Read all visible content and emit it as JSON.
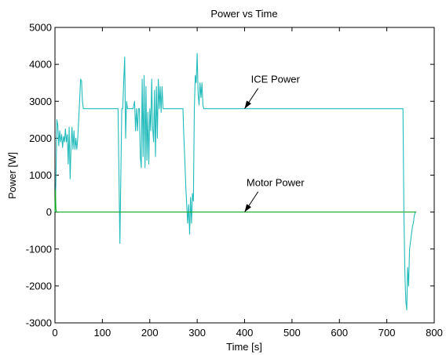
{
  "chart_data": {
    "type": "line",
    "title": "Power vs Time",
    "xlabel": "Time [s]",
    "ylabel": "Power [W]",
    "xlim": [
      0,
      800
    ],
    "ylim": [
      -3000,
      5000
    ],
    "xticks": [
      0,
      100,
      200,
      300,
      400,
      500,
      600,
      700,
      800
    ],
    "yticks": [
      -3000,
      -2000,
      -1000,
      0,
      1000,
      2000,
      3000,
      4000,
      5000
    ],
    "grid": false,
    "series": [
      {
        "name": "ICE Power",
        "color": "#22bbbb",
        "points": [
          [
            0,
            0
          ],
          [
            2,
            800
          ],
          [
            4,
            2500
          ],
          [
            6,
            2350
          ],
          [
            8,
            1800
          ],
          [
            10,
            2200
          ],
          [
            12,
            1900
          ],
          [
            14,
            2100
          ],
          [
            16,
            1750
          ],
          [
            18,
            2050
          ],
          [
            20,
            1900
          ],
          [
            22,
            2250
          ],
          [
            24,
            1900
          ],
          [
            26,
            2100
          ],
          [
            28,
            1300
          ],
          [
            30,
            2300
          ],
          [
            32,
            900
          ],
          [
            34,
            1800
          ],
          [
            36,
            2300
          ],
          [
            38,
            1700
          ],
          [
            40,
            2200
          ],
          [
            42,
            1700
          ],
          [
            44,
            2000
          ],
          [
            46,
            1700
          ],
          [
            48,
            2000
          ],
          [
            50,
            2500
          ],
          [
            52,
            3000
          ],
          [
            54,
            3600
          ],
          [
            56,
            3550
          ],
          [
            58,
            3000
          ],
          [
            60,
            2800
          ],
          [
            133,
            2800
          ],
          [
            135,
            1000
          ],
          [
            137,
            -850
          ],
          [
            139,
            1000
          ],
          [
            141,
            2800
          ],
          [
            143,
            2800
          ],
          [
            145,
            3500
          ],
          [
            147,
            4200
          ],
          [
            149,
            2000
          ],
          [
            151,
            3000
          ],
          [
            153,
            2800
          ],
          [
            165,
            2800
          ],
          [
            168,
            3000
          ],
          [
            170,
            2200
          ],
          [
            172,
            2800
          ],
          [
            174,
            2200
          ],
          [
            176,
            2800
          ],
          [
            178,
            2800
          ],
          [
            180,
            1500
          ],
          [
            182,
            1200
          ],
          [
            184,
            3600
          ],
          [
            186,
            1500
          ],
          [
            188,
            3700
          ],
          [
            190,
            1200
          ],
          [
            192,
            3400
          ],
          [
            194,
            1400
          ],
          [
            196,
            2700
          ],
          [
            198,
            1300
          ],
          [
            200,
            2800
          ],
          [
            202,
            2200
          ],
          [
            204,
            3600
          ],
          [
            206,
            2300
          ],
          [
            208,
            1900
          ],
          [
            210,
            3300
          ],
          [
            212,
            1500
          ],
          [
            214,
            3400
          ],
          [
            216,
            2000
          ],
          [
            218,
            3600
          ],
          [
            220,
            2800
          ],
          [
            222,
            3400
          ],
          [
            224,
            2700
          ],
          [
            226,
            3400
          ],
          [
            228,
            2800
          ],
          [
            270,
            2800
          ],
          [
            272,
            2000
          ],
          [
            274,
            1400
          ],
          [
            276,
            700
          ],
          [
            278,
            200
          ],
          [
            280,
            -300
          ],
          [
            282,
            200
          ],
          [
            284,
            -600
          ],
          [
            286,
            400
          ],
          [
            288,
            -300
          ],
          [
            290,
            500
          ],
          [
            292,
            300
          ],
          [
            294,
            2800
          ],
          [
            296,
            3700
          ],
          [
            298,
            3500
          ],
          [
            300,
            4300
          ],
          [
            302,
            3200
          ],
          [
            304,
            2900
          ],
          [
            306,
            3500
          ],
          [
            308,
            3100
          ],
          [
            310,
            3500
          ],
          [
            312,
            2900
          ],
          [
            314,
            2800
          ],
          [
            734,
            2800
          ],
          [
            736,
            0
          ],
          [
            738,
            -1600
          ],
          [
            740,
            -2400
          ],
          [
            742,
            -2650
          ],
          [
            744,
            -1500
          ],
          [
            746,
            -2000
          ],
          [
            748,
            -1000
          ],
          [
            750,
            -800
          ],
          [
            752,
            -600
          ],
          [
            754,
            -400
          ],
          [
            756,
            -300
          ],
          [
            758,
            -100
          ],
          [
            760,
            0
          ],
          [
            762,
            0
          ]
        ]
      },
      {
        "name": "Motor Power",
        "color": "#11aa22",
        "points": [
          [
            0,
            0
          ],
          [
            1,
            600
          ],
          [
            2,
            100
          ],
          [
            3,
            0
          ],
          [
            762,
            0
          ]
        ]
      }
    ],
    "annotations": [
      {
        "text": "ICE Power",
        "label_at": [
          465,
          3500
        ],
        "arrow_to": [
          400,
          2800
        ]
      },
      {
        "text": "Motor Power",
        "label_at": [
          465,
          700
        ],
        "arrow_to": [
          400,
          0
        ]
      }
    ]
  }
}
